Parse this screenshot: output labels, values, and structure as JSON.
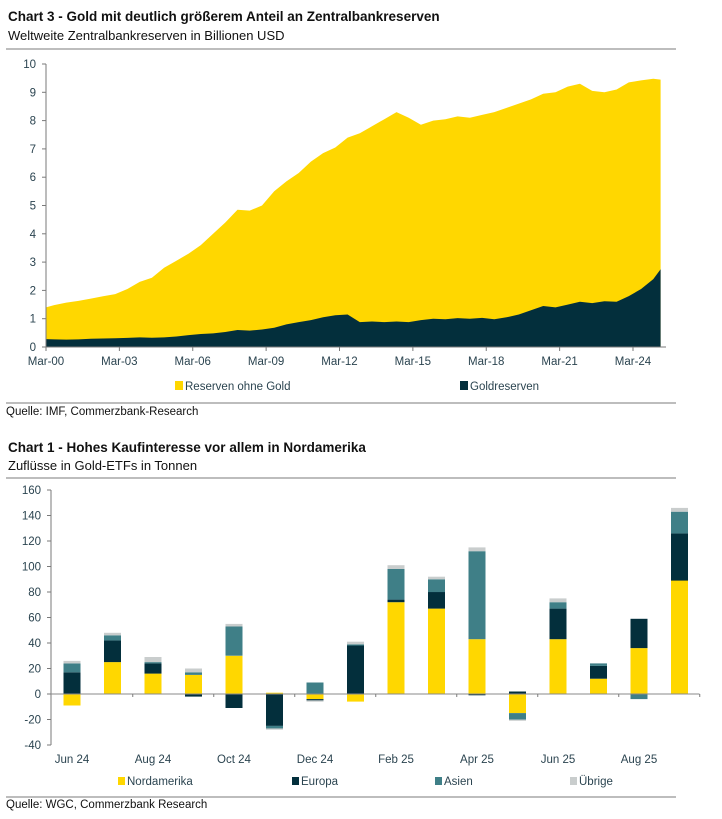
{
  "colors": {
    "gold_yellow": "#FFD700",
    "dark_teal": "#032F3C",
    "teal": "#3F7F87",
    "light_grey": "#C9CDCD",
    "axis": "#7a7a7a",
    "rule": "#bdbdbd"
  },
  "chart_data": [
    {
      "type": "area",
      "stacked": true,
      "title": "Chart 3 - Gold mit deutlich größerem Anteil an Zentralbankreserven",
      "subtitle": "Weltweite Zentralbankreserven in Billionen USD",
      "xlabel": "",
      "ylabel": "",
      "ylim": [
        0,
        10
      ],
      "yticks": [
        "0",
        "1",
        "2",
        "3",
        "4",
        "5",
        "6",
        "7",
        "8",
        "9",
        "10"
      ],
      "xtick_labels": [
        "Mar-00",
        "Mar-03",
        "Mar-06",
        "Mar-09",
        "Mar-12",
        "Mar-15",
        "Mar-18",
        "Mar-21",
        "Mar-24"
      ],
      "x": [
        2000.17,
        2000.5,
        2001,
        2001.5,
        2002,
        2002.5,
        2003,
        2003.5,
        2004,
        2004.5,
        2005,
        2005.5,
        2006,
        2006.5,
        2007,
        2007.5,
        2008,
        2008.5,
        2009,
        2009.5,
        2010,
        2010.5,
        2011,
        2011.5,
        2012,
        2012.5,
        2013,
        2013.5,
        2014,
        2014.5,
        2015,
        2015.5,
        2016,
        2016.5,
        2017,
        2017.5,
        2018,
        2018.5,
        2019,
        2019.5,
        2020,
        2020.5,
        2021,
        2021.5,
        2022,
        2022.5,
        2023,
        2023.5,
        2024,
        2024.5,
        2025,
        2025.3
      ],
      "series": [
        {
          "name": "Goldreserven",
          "total": [
            0.28,
            0.27,
            0.26,
            0.27,
            0.29,
            0.3,
            0.31,
            0.32,
            0.34,
            0.33,
            0.34,
            0.37,
            0.42,
            0.46,
            0.48,
            0.53,
            0.6,
            0.58,
            0.62,
            0.68,
            0.8,
            0.88,
            0.95,
            1.05,
            1.12,
            1.15,
            0.88,
            0.9,
            0.88,
            0.9,
            0.88,
            0.95,
            1.0,
            0.98,
            1.02,
            1.0,
            1.03,
            0.98,
            1.05,
            1.15,
            1.3,
            1.45,
            1.4,
            1.5,
            1.6,
            1.55,
            1.62,
            1.6,
            1.8,
            2.05,
            2.4,
            2.75
          ]
        },
        {
          "name": "Reserven ohne Gold",
          "total_including_gold": [
            1.4,
            1.48,
            1.57,
            1.63,
            1.71,
            1.79,
            1.87,
            2.05,
            2.3,
            2.45,
            2.8,
            3.05,
            3.3,
            3.6,
            4.0,
            4.4,
            4.85,
            4.82,
            5.0,
            5.5,
            5.85,
            6.15,
            6.55,
            6.85,
            7.05,
            7.4,
            7.55,
            7.8,
            8.05,
            8.3,
            8.1,
            7.85,
            8.0,
            8.05,
            8.15,
            8.1,
            8.2,
            8.3,
            8.45,
            8.6,
            8.75,
            8.95,
            9.0,
            9.2,
            9.3,
            9.05,
            9.0,
            9.1,
            9.35,
            9.42,
            9.48,
            9.45
          ]
        }
      ],
      "legend": [
        "Reserven ohne Gold",
        "Goldreserven"
      ],
      "legend_position": "bottom",
      "source": "Quelle: IMF, Commerzbank-Research"
    },
    {
      "type": "bar",
      "stacked": true,
      "title": "Chart 1 - Hohes Kaufinteresse vor allem in Nordamerika",
      "subtitle": "Zuflüsse in Gold-ETFs in Tonnen",
      "xlabel": "",
      "ylabel": "",
      "ylim": [
        -40,
        160
      ],
      "yticks": [
        "-40",
        "-20",
        "0",
        "20",
        "40",
        "60",
        "80",
        "100",
        "120",
        "140",
        "160"
      ],
      "categories": [
        "Jun 24",
        "Jul 24",
        "Aug 24",
        "Sep 24",
        "Oct 24",
        "Nov 24",
        "Dec 24",
        "Jan 25",
        "Feb 25",
        "Mar 25",
        "Apr 25",
        "May 25",
        "Jun 25",
        "Jul 25",
        "Aug 25",
        "Sep 25"
      ],
      "xtick_labels": [
        "Jun 24",
        "Aug 24",
        "Oct 24",
        "Dec 24",
        "Feb 25",
        "Apr 25",
        "Jun 25",
        "Aug 25"
      ],
      "series": [
        {
          "name": "Nordamerika",
          "values": [
            -9,
            25,
            16,
            15,
            30,
            1,
            -4,
            -6,
            72,
            67,
            43,
            -15,
            43,
            12,
            36,
            89
          ]
        },
        {
          "name": "Europa",
          "values": [
            17,
            17,
            8,
            -2,
            -11,
            -25,
            -1,
            38,
            2,
            13,
            -1,
            2,
            24,
            10,
            23,
            37
          ]
        },
        {
          "name": "Asien",
          "values": [
            7,
            4,
            1,
            2,
            23,
            -2,
            9,
            1,
            24,
            10,
            69,
            -5,
            5,
            2,
            -4,
            17
          ]
        },
        {
          "name": "Übrige",
          "values": [
            2,
            2,
            4,
            3,
            2,
            -1,
            -1,
            2,
            3,
            2,
            3,
            -1,
            3,
            0,
            0,
            3
          ]
        }
      ],
      "legend": [
        "Nordamerika",
        "Europa",
        "Asien",
        "Übrige"
      ],
      "legend_position": "bottom",
      "source": "Quelle: WGC, Commerzbank Research"
    }
  ]
}
